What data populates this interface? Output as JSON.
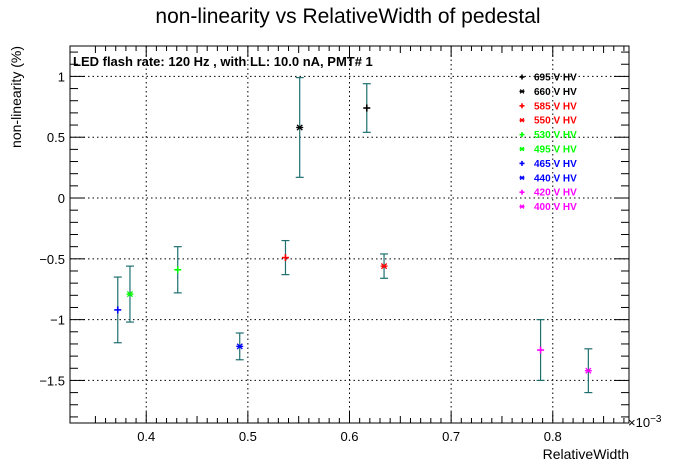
{
  "chart_data": {
    "type": "scatter",
    "title": "non-linearity vs RelativeWidth of pedestal",
    "xlabel": "RelativeWidth",
    "ylabel": "non-linearity (%)",
    "x_exponent_label": "×10",
    "x_exponent_power": "−3",
    "annotation": "LED flash rate: 120 Hz , with LL: 10.0 nA, PMT# 1",
    "xlim": [
      0.325,
      0.875
    ],
    "ylim": [
      -1.85,
      1.25
    ],
    "x_ticks": [
      {
        "value": 0.4,
        "label": "0.4"
      },
      {
        "value": 0.5,
        "label": "0.5"
      },
      {
        "value": 0.6,
        "label": "0.6"
      },
      {
        "value": 0.7,
        "label": "0.7"
      },
      {
        "value": 0.8,
        "label": "0.8"
      }
    ],
    "y_ticks": [
      {
        "value": -1.5,
        "label": "−1.5"
      },
      {
        "value": -1,
        "label": "−1"
      },
      {
        "value": -0.5,
        "label": "−0.5"
      },
      {
        "value": 0,
        "label": "0"
      },
      {
        "value": 0.5,
        "label": "0.5"
      },
      {
        "value": 1,
        "label": "1"
      }
    ],
    "grid": true,
    "legend_position": "top-right",
    "series": [
      {
        "name": "695 V HV",
        "color": "#000000",
        "marker": "+",
        "x": 0.617,
        "y": 0.74,
        "err": 0.2
      },
      {
        "name": "660 V HV",
        "color": "#000000",
        "marker": "*",
        "x": 0.551,
        "y": 0.58,
        "err": 0.41
      },
      {
        "name": "585 V HV",
        "color": "#ff0000",
        "marker": "+",
        "x": 0.537,
        "y": -0.49,
        "err": 0.14
      },
      {
        "name": "550 V HV",
        "color": "#ff0000",
        "marker": "*",
        "x": 0.634,
        "y": -0.56,
        "err": 0.1
      },
      {
        "name": "530 V HV",
        "color": "#00ff00",
        "marker": "+",
        "x": 0.431,
        "y": -0.59,
        "err": 0.19
      },
      {
        "name": "495 V HV",
        "color": "#00ff00",
        "marker": "*",
        "x": 0.384,
        "y": -0.79,
        "err": 0.23
      },
      {
        "name": "465 V HV",
        "color": "#0000ff",
        "marker": "+",
        "x": 0.372,
        "y": -0.92,
        "err": 0.27
      },
      {
        "name": "440 V HV",
        "color": "#0000ff",
        "marker": "*",
        "x": 0.492,
        "y": -1.22,
        "err": 0.11
      },
      {
        "name": "420 V HV",
        "color": "#ff00ff",
        "marker": "+",
        "x": 0.788,
        "y": -1.25,
        "err": 0.25
      },
      {
        "name": "400 V HV",
        "color": "#ff00ff",
        "marker": "*",
        "x": 0.835,
        "y": -1.42,
        "err": 0.18
      }
    ]
  }
}
